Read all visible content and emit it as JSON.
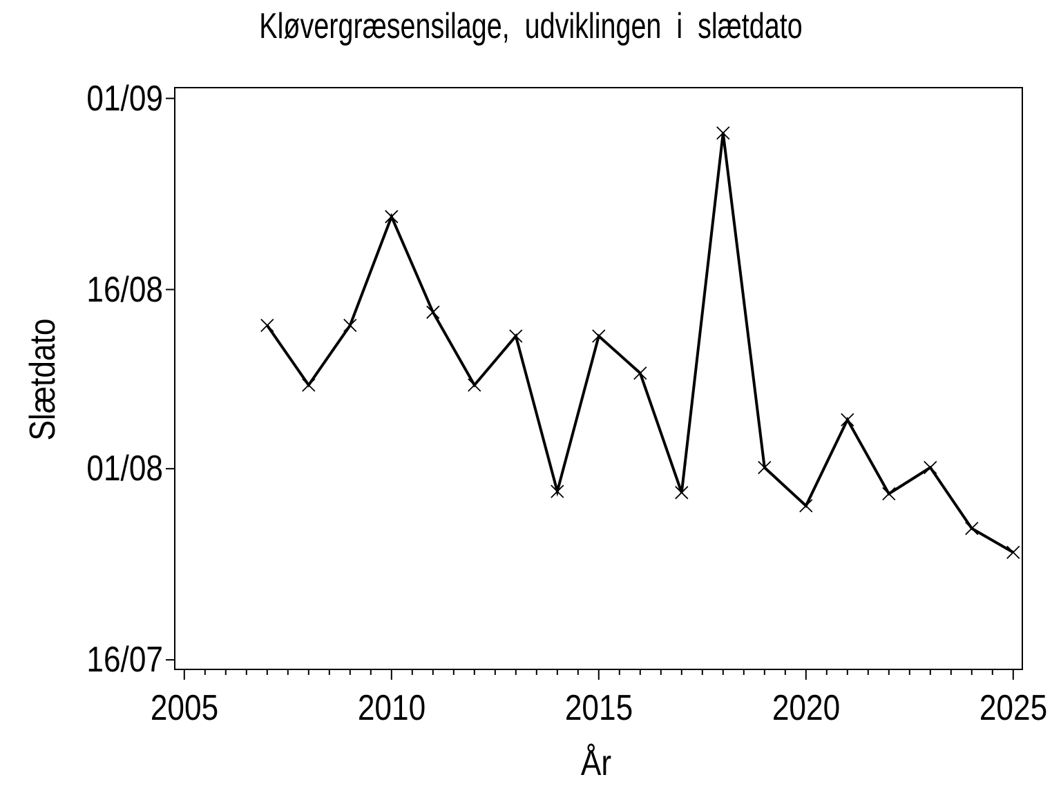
{
  "title": "Kløvergræsensilage,  udviklingen  i  slætdato",
  "chart_data": {
    "type": "line",
    "title": "Kløvergræsensilage,  udviklingen  i  slætdato",
    "xlabel": "År",
    "ylabel": "Slætdato",
    "grid": false,
    "legend": "none",
    "background": "#ffffff",
    "line_color": "#000000",
    "marker": "x",
    "x_range": [
      2004.77,
      2025.22
    ],
    "y_range_days_after_16jul": [
      -0.8,
      47.9
    ],
    "x_major_ticks": [
      2005,
      2010,
      2015,
      2020,
      2025
    ],
    "x_minor_tick_step_years": 0.5,
    "y_ticks": [
      {
        "label": "16/07",
        "days_after_16jul": 0
      },
      {
        "label": "01/08",
        "days_after_16jul": 16
      },
      {
        "label": "16/08",
        "days_after_16jul": 31
      },
      {
        "label": "01/09",
        "days_after_16jul": 47
      }
    ],
    "series": [
      {
        "name": "Slætdato",
        "x": [
          2007,
          2008,
          2009,
          2010,
          2011,
          2012,
          2013,
          2014,
          2015,
          2016,
          2017,
          2018,
          2019,
          2020,
          2021,
          2022,
          2023,
          2024,
          2025
        ],
        "y_days_after_16jul": [
          28.0,
          23.0,
          28.0,
          37.1,
          29.1,
          23.0,
          27.1,
          14.1,
          27.1,
          24.0,
          14.0,
          44.1,
          16.1,
          12.9,
          20.1,
          13.9,
          16.1,
          11.0,
          9.0
        ],
        "y_dates": [
          "13/08",
          "08/08",
          "13/08",
          "22/08",
          "14/08",
          "08/08",
          "12/08",
          "30/07",
          "12/08",
          "09/08",
          "30/07",
          "29/08",
          "01/08",
          "29/07",
          "05/08",
          "30/07",
          "01/08",
          "27/07",
          "25/07"
        ]
      }
    ]
  }
}
